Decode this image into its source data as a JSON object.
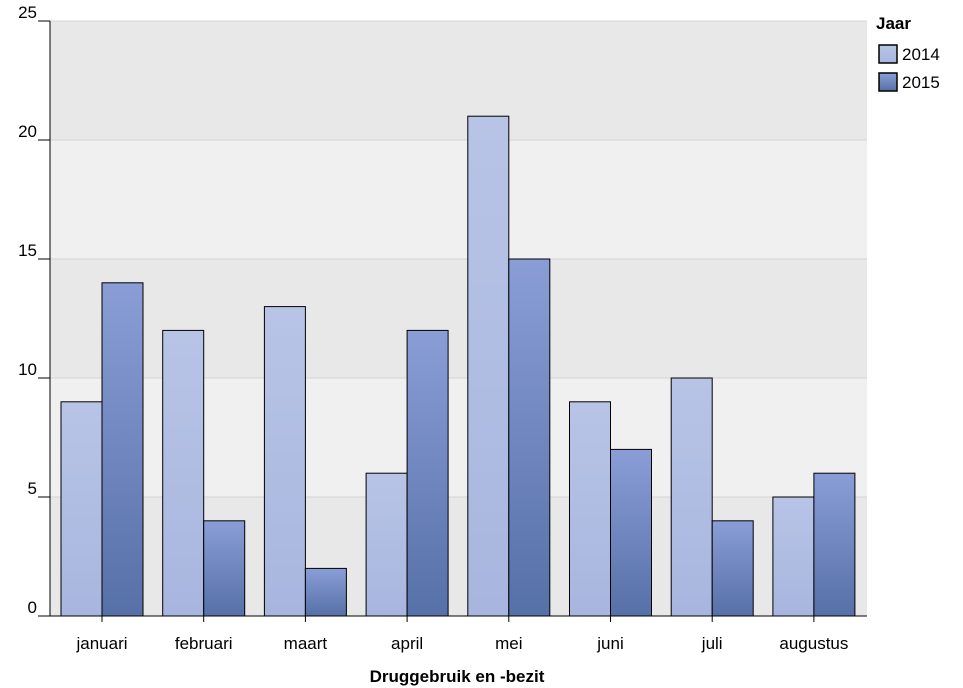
{
  "chart_data": {
    "type": "bar",
    "categories": [
      "januari",
      "februari",
      "maart",
      "april",
      "mei",
      "juni",
      "juli",
      "augustus"
    ],
    "series": [
      {
        "name": "2014",
        "values": [
          9,
          12,
          13,
          6,
          21,
          9,
          10,
          5
        ],
        "color": "#b3c0e3"
      },
      {
        "name": "2015",
        "values": [
          14,
          4,
          2,
          12,
          15,
          7,
          4,
          6
        ],
        "color": "#6a81be"
      }
    ],
    "title": "",
    "xlabel": "Druggebruik en -bezit",
    "ylabel": "",
    "ylim": [
      0,
      25
    ],
    "yticks": [
      0,
      5,
      10,
      15,
      20,
      25
    ],
    "legend_title": "Jaar",
    "legend_position": "top-right",
    "grid": true,
    "band_colors": [
      "#e8e8e8",
      "#f0f0f0"
    ]
  }
}
